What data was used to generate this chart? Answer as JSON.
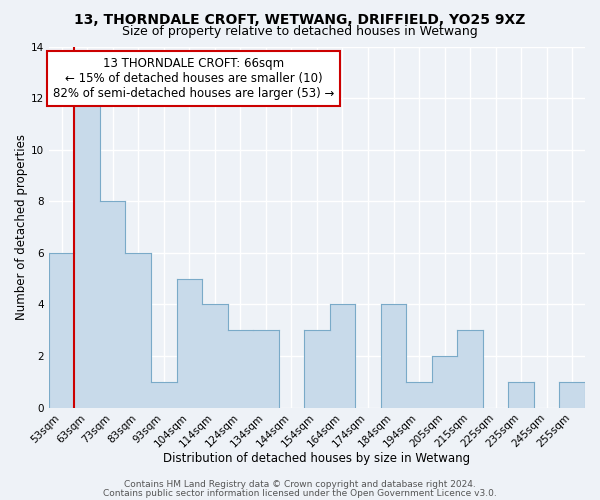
{
  "title": "13, THORNDALE CROFT, WETWANG, DRIFFIELD, YO25 9XZ",
  "subtitle": "Size of property relative to detached houses in Wetwang",
  "xlabel": "Distribution of detached houses by size in Wetwang",
  "ylabel": "Number of detached properties",
  "bar_labels": [
    "53sqm",
    "63sqm",
    "73sqm",
    "83sqm",
    "93sqm",
    "104sqm",
    "114sqm",
    "124sqm",
    "134sqm",
    "144sqm",
    "154sqm",
    "164sqm",
    "174sqm",
    "184sqm",
    "194sqm",
    "205sqm",
    "215sqm",
    "225sqm",
    "235sqm",
    "245sqm",
    "255sqm"
  ],
  "bar_values": [
    6,
    12,
    8,
    6,
    1,
    5,
    4,
    3,
    3,
    0,
    3,
    4,
    0,
    4,
    1,
    2,
    3,
    0,
    1,
    0,
    1
  ],
  "fill_color": "#c8daea",
  "edge_color": "#7aaac8",
  "vline_color": "#cc0000",
  "vline_index": 1,
  "annotation_title": "13 THORNDALE CROFT: 66sqm",
  "annotation_line1": "← 15% of detached houses are smaller (10)",
  "annotation_line2": "82% of semi-detached houses are larger (53) →",
  "annotation_box_edgecolor": "#cc0000",
  "annotation_box_facecolor": "#ffffff",
  "ylim": [
    0,
    14
  ],
  "yticks": [
    0,
    2,
    4,
    6,
    8,
    10,
    12,
    14
  ],
  "footer1": "Contains HM Land Registry data © Crown copyright and database right 2024.",
  "footer2": "Contains public sector information licensed under the Open Government Licence v3.0.",
  "background_color": "#eef2f7",
  "plot_background_color": "#eef2f7",
  "grid_color": "#ffffff",
  "title_fontsize": 10,
  "subtitle_fontsize": 9,
  "axis_label_fontsize": 8.5,
  "tick_fontsize": 7.5,
  "annotation_fontsize": 8.5,
  "footer_fontsize": 6.5
}
